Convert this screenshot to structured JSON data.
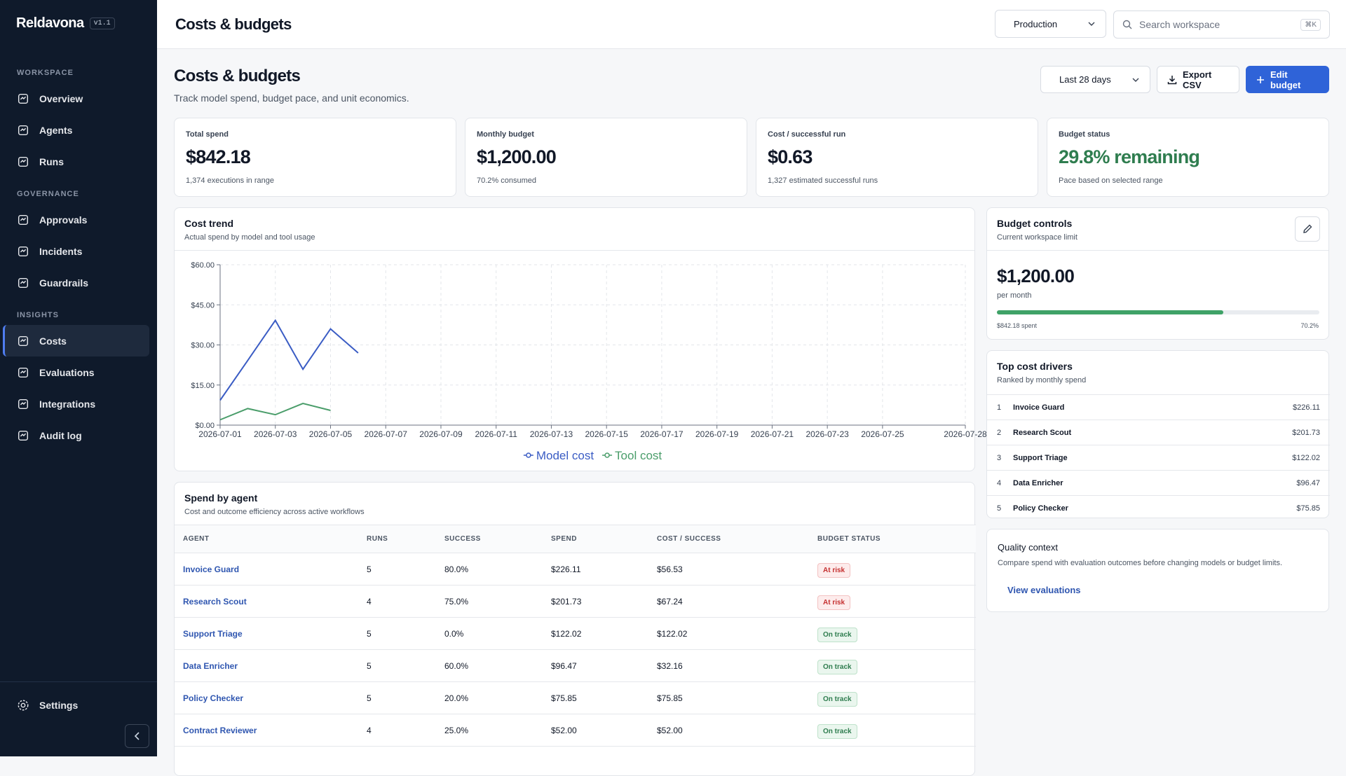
{
  "sidebar": {
    "brand": "Reldavona",
    "version": "v1.1",
    "sections": [
      {
        "title": "WORKSPACE",
        "items": [
          "Overview",
          "Agents",
          "Runs"
        ]
      },
      {
        "title": "GOVERNANCE",
        "items": [
          "Approvals",
          "Incidents",
          "Guardrails"
        ]
      },
      {
        "title": "INSIGHTS",
        "items": [
          "Costs",
          "Evaluations",
          "Integrations",
          "Audit log"
        ]
      }
    ],
    "active": [
      2,
      0
    ],
    "settings": "Settings"
  },
  "header": {
    "title": "Costs & budgets",
    "environment": "Production",
    "search_placeholder": "Search workspace",
    "shortcut": "⌘K"
  },
  "page": {
    "title": "Costs & budgets",
    "subtitle": "Track model spend, budget pace, and unit economics.",
    "range": "Last 28 days",
    "export": "Export CSV",
    "edit": "Edit budget"
  },
  "kpis": [
    {
      "label": "Total spend",
      "value": "$842.18",
      "note": "1,374 executions in range"
    },
    {
      "label": "Monthly budget",
      "value": "$1,200.00",
      "note": "70.2% consumed"
    },
    {
      "label": "Cost / successful run",
      "value": "$0.63",
      "note": "1,327 estimated successful runs"
    },
    {
      "label": "Budget status",
      "value": "29.8% remaining",
      "note": "Pace based on selected range",
      "color": "#2f7d4f"
    }
  ],
  "chart_data": {
    "type": "line",
    "title": "Cost trend",
    "subtitle": "Actual spend by model and tool usage",
    "x": [
      "2026-07-01",
      "2026-07-02",
      "2026-07-03",
      "2026-07-04",
      "2026-07-05",
      "2026-07-06"
    ],
    "series": [
      {
        "name": "Model cost",
        "color": "#3a5cc4",
        "values": [
          9.3,
          24.2,
          39.2,
          20.9,
          36,
          27
        ]
      },
      {
        "name": "Tool cost",
        "color": "#4a9d6a",
        "values": [
          2,
          6.2,
          3.9,
          8.1,
          5.5,
          null
        ]
      }
    ],
    "xlim": [
      "2026-07-01",
      "2026-07-28"
    ],
    "xticks": [
      "2026-07-01",
      "2026-07-03",
      "2026-07-05",
      "2026-07-07",
      "2026-07-09",
      "2026-07-11",
      "2026-07-13",
      "2026-07-15",
      "2026-07-17",
      "2026-07-19",
      "2026-07-21",
      "2026-07-23",
      "2026-07-25",
      "2026-07-28"
    ],
    "ylim": [
      0,
      60
    ],
    "yticks": [
      {
        "value": 0,
        "label": "$0.00"
      },
      {
        "value": 15,
        "label": "$15.00"
      },
      {
        "value": 30,
        "label": "$30.00"
      },
      {
        "value": 45,
        "label": "$45.00"
      },
      {
        "value": 60,
        "label": "$60.00"
      }
    ],
    "grid": true,
    "legend": "bottom"
  },
  "budget_controls": {
    "title": "Budget controls",
    "subtitle": "Current workspace limit",
    "amount": "$1,200.00",
    "period": "per month",
    "spent_label": "$842.18 spent",
    "percent_label": "70.2%",
    "progress": 70.2,
    "color": "#3fa267"
  },
  "top_drivers": {
    "title": "Top cost drivers",
    "subtitle": "Ranked by monthly spend",
    "items": [
      {
        "rank": "1",
        "name": "Invoice Guard",
        "spend": "$226.11"
      },
      {
        "rank": "2",
        "name": "Research Scout",
        "spend": "$201.73"
      },
      {
        "rank": "3",
        "name": "Support Triage",
        "spend": "$122.02"
      },
      {
        "rank": "4",
        "name": "Data Enricher",
        "spend": "$96.47"
      },
      {
        "rank": "5",
        "name": "Policy Checker",
        "spend": "$75.85"
      }
    ]
  },
  "quality": {
    "title": "Quality context",
    "text": "Compare spend with evaluation outcomes before changing models or budget limits.",
    "link": "View evaluations"
  },
  "spend_table": {
    "title": "Spend by agent",
    "subtitle": "Cost and outcome efficiency across active workflows",
    "columns": [
      "AGENT",
      "RUNS",
      "SUCCESS",
      "SPEND",
      "COST / SUCCESS",
      "BUDGET STATUS"
    ],
    "rows": [
      [
        "Invoice Guard",
        "5",
        "80.0%",
        "$226.11",
        "$56.53",
        "At risk"
      ],
      [
        "Research Scout",
        "4",
        "75.0%",
        "$201.73",
        "$67.24",
        "At risk"
      ],
      [
        "Support Triage",
        "5",
        "0.0%",
        "$122.02",
        "$122.02",
        "On track"
      ],
      [
        "Data Enricher",
        "5",
        "60.0%",
        "$96.47",
        "$32.16",
        "On track"
      ],
      [
        "Policy Checker",
        "5",
        "20.0%",
        "$75.85",
        "$75.85",
        "On track"
      ],
      [
        "Contract Reviewer",
        "4",
        "25.0%",
        "$52.00",
        "$52.00",
        "On track"
      ]
    ],
    "status_styles": {
      "At risk": {
        "color": "#c53030",
        "background": "#fdecec",
        "border": "#f3c2c2"
      },
      "On track": {
        "color": "#2f7d4f",
        "background": "#eaf6ee",
        "border": "#bfe2cb"
      }
    }
  }
}
